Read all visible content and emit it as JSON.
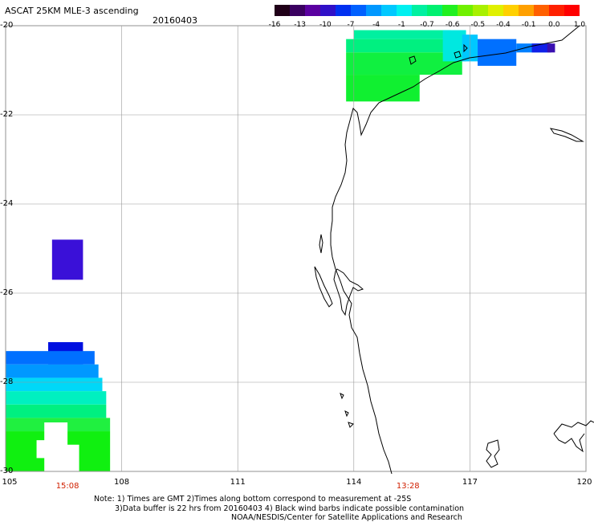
{
  "header": {
    "title": "ASCAT 25KM MLE-3 ascending",
    "date": "20160403"
  },
  "colorbar": {
    "ticks": [
      "-16",
      "-13",
      "-10",
      "-7",
      "-4",
      "-1",
      "-0.7",
      "-0.6",
      "-0.5",
      "-0.4",
      "-0.1",
      "0.0",
      "1.0"
    ],
    "colors": [
      "#200018",
      "#3a0060",
      "#5a00a0",
      "#3010c8",
      "#0030f0",
      "#0060ff",
      "#0098ff",
      "#00c8ff",
      "#00f0f0",
      "#00f0a0",
      "#00f070",
      "#20f020",
      "#70f000",
      "#a8f000",
      "#e0f000",
      "#ffd000",
      "#ffa000",
      "#ff6000",
      "#ff2000",
      "#ff0000"
    ]
  },
  "axes": {
    "lat_labels": [
      "-20",
      "-22",
      "-24",
      "-26",
      "-28",
      "-30"
    ],
    "lon_labels": [
      "105",
      "108",
      "111",
      "114",
      "117",
      "120"
    ],
    "time_labels": [
      {
        "text": "15:08",
        "lon": 106.6
      },
      {
        "text": "13:28",
        "lon": 115.4
      }
    ]
  },
  "map_extent": {
    "lon_min": 105,
    "lon_max": 120,
    "lat_max": -20,
    "lat_min": -30
  },
  "swaths": [
    {
      "lon": [
        106.2,
        107.0
      ],
      "lat": [
        -24.8,
        -25.7
      ],
      "color": "#3a10d8"
    },
    {
      "lon": [
        106.1,
        107.0
      ],
      "lat": [
        -27.1,
        -27.6
      ],
      "color": "#0010e0"
    },
    {
      "lon": [
        105.0,
        107.3
      ],
      "lat": [
        -27.3,
        -27.6
      ],
      "color": "#0070ff"
    },
    {
      "lon": [
        105.0,
        107.4
      ],
      "lat": [
        -27.6,
        -27.9
      ],
      "color": "#0098ff"
    },
    {
      "lon": [
        105.0,
        107.5
      ],
      "lat": [
        -27.9,
        -28.2
      ],
      "color": "#00d8f8"
    },
    {
      "lon": [
        105.0,
        107.6
      ],
      "lat": [
        -28.2,
        -28.5
      ],
      "color": "#00f0c0"
    },
    {
      "lon": [
        105.0,
        107.6
      ],
      "lat": [
        -28.5,
        -28.8
      ],
      "color": "#00f080"
    },
    {
      "lon": [
        105.0,
        107.7
      ],
      "lat": [
        -28.8,
        -29.1
      ],
      "color": "#20f040"
    },
    {
      "lon": [
        105.0,
        107.7
      ],
      "lat": [
        -29.1,
        -30.0
      ],
      "color": "#10f010"
    },
    {
      "lon": [
        114.0,
        116.5
      ],
      "lat": [
        -20.1,
        -20.3
      ],
      "color": "#00f0a0"
    },
    {
      "lon": [
        113.8,
        116.8
      ],
      "lat": [
        -20.3,
        -20.6
      ],
      "color": "#00f080"
    },
    {
      "lon": [
        113.8,
        116.8
      ],
      "lat": [
        -20.6,
        -21.1
      ],
      "color": "#10f040"
    },
    {
      "lon": [
        113.8,
        115.7
      ],
      "lat": [
        -21.1,
        -21.7
      ],
      "color": "#10f030"
    },
    {
      "lon": [
        116.3,
        116.9
      ],
      "lat": [
        -20.1,
        -20.8
      ],
      "color": "#00e8e0"
    },
    {
      "lon": [
        116.8,
        117.2
      ],
      "lat": [
        -20.2,
        -20.8
      ],
      "color": "#00c8ff"
    },
    {
      "lon": [
        117.2,
        118.2
      ],
      "lat": [
        -20.3,
        -20.9
      ],
      "color": "#0070ff"
    },
    {
      "lon": [
        118.2,
        119.0
      ],
      "lat": [
        -20.4,
        -20.6
      ],
      "color": "#0080ff"
    },
    {
      "lon": [
        118.6,
        119.1
      ],
      "lat": [
        -20.4,
        -20.6
      ],
      "color": "#1020e8"
    },
    {
      "lon": [
        119.0,
        119.2
      ],
      "lat": [
        -20.4,
        -20.6
      ],
      "color": "#3a10b0"
    }
  ],
  "notes": [
    "Note: 1) Times are GMT 2)Times along bottom correspond to measurement at -25S",
    "3)Data buffer is 22 hrs from 20160403 4) Black wind barbs indicate possible contamination",
    "NOAA/NESDIS/Center for Satellite Applications and Research"
  ]
}
